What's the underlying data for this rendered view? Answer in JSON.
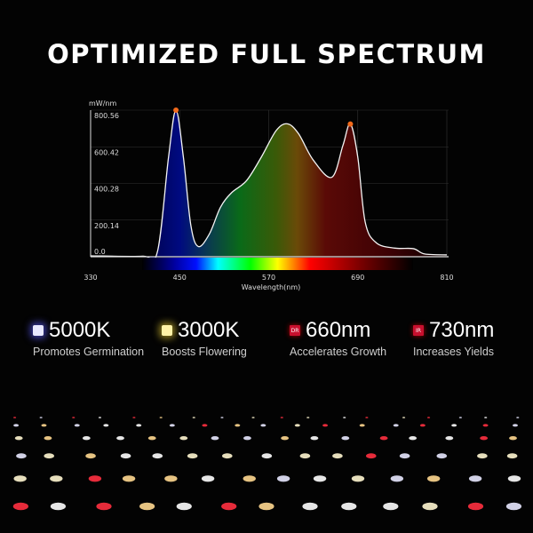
{
  "title": "OPTIMIZED FULL SPECTRUM",
  "chart_data": {
    "type": "area",
    "title": "",
    "xlabel": "Wavelength(nm)",
    "ylabel": "mW/nm",
    "xlim": [
      330,
      810
    ],
    "ylim": [
      0,
      800.56
    ],
    "x_ticks": [
      "330",
      "450",
      "570",
      "690",
      "810"
    ],
    "y_ticks": [
      "0.0",
      "200.14",
      "400.28",
      "600.42",
      "800.56"
    ],
    "grid": true,
    "fill": "spectrum-gradient",
    "series": [
      {
        "x": [
          330,
          400,
          420,
          435,
          445,
          455,
          465,
          475,
          490,
          505,
          520,
          540,
          560,
          580,
          595,
          610,
          630,
          655,
          670,
          680,
          690,
          700,
          715,
          740,
          765,
          780,
          810
        ],
        "y": [
          5,
          3,
          27,
          544,
          800,
          544,
          173,
          56,
          124,
          270,
          350,
          415,
          544,
          689,
          726,
          673,
          528,
          434,
          608,
          725,
          544,
          189,
          76,
          47,
          44,
          15,
          10
        ]
      }
    ],
    "markers": [
      {
        "x": 445,
        "y": 800.56
      },
      {
        "x": 680,
        "y": 725
      }
    ],
    "marker_color": "#f26a1b"
  },
  "features": [
    {
      "value": "5000K",
      "label": "Promotes Germination",
      "icon": "white-led-square",
      "color": "#e8e8ff"
    },
    {
      "value": "3000K",
      "label": "Boosts Flowering",
      "icon": "warm-led-square",
      "color": "#fff2a8"
    },
    {
      "value": "660nm",
      "label": "Accelerates Growth",
      "icon": "dr-badge",
      "badge": "DR",
      "color": "#c8102e"
    },
    {
      "value": "730nm",
      "label": "Increases Yields",
      "icon": "ir-badge",
      "badge": "IR",
      "color": "#a8102e"
    }
  ]
}
